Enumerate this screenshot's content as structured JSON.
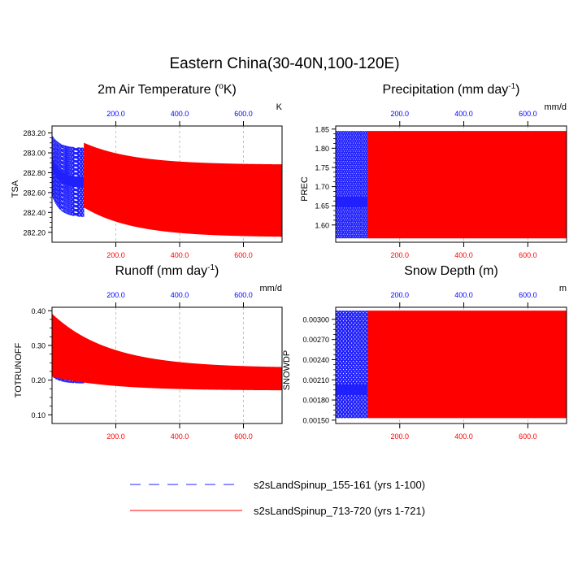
{
  "title": "Eastern China(30-40N,100-120E)",
  "colors": {
    "blue": "#2020ff",
    "red": "#ff0000",
    "blue_tick": "#0000ff",
    "red_tick": "#ff0000",
    "grid": "#9a9a9a"
  },
  "legend": [
    {
      "label": "s2sLandSpinup_155-161 (yrs 1-100)",
      "color": "#2020ff",
      "dash": "dashed"
    },
    {
      "label": "s2sLandSpinup_713-720 (yrs 1-721)",
      "color": "#ff0000",
      "dash": "solid"
    }
  ],
  "chart_data": [
    {
      "type": "line",
      "id": "tsa",
      "title_main": "2m Air Temperature (",
      "title_sup": "o",
      "title_end": "K)",
      "units": "K",
      "ylabel": "TSA",
      "xlim": [
        0,
        721
      ],
      "ylim": [
        282.1,
        283.27
      ],
      "yticks": [
        282.2,
        282.4,
        282.6,
        282.8,
        283.0,
        283.2
      ],
      "yticklabels": [
        "282.20",
        "282.40",
        "282.60",
        "282.80",
        "283.00",
        "283.20"
      ],
      "top_xticks": [
        200,
        400,
        600
      ],
      "top_xticklabels": [
        "200.0",
        "400.0",
        "600.0"
      ],
      "bottom_xticks": [
        200,
        400,
        600
      ],
      "bottom_xticklabels": [
        "200.0",
        "400.0",
        "600.0"
      ],
      "series": [
        {
          "name": "s2sLandSpinup_155-161 (yrs 1-100)",
          "color": "blue",
          "dash": "dashed",
          "x_range": [
            1,
            100
          ],
          "upper_start": 283.17,
          "upper_end": 283.05,
          "lower_start": 282.56,
          "lower_end": 282.35,
          "mean_start": 282.88,
          "mean_end": 282.7
        },
        {
          "name": "s2sLandSpinup_713-720 (yrs 1-721)",
          "color": "red",
          "dash": "solid",
          "x_range": [
            100,
            721
          ],
          "upper_start": 283.1,
          "upper_end": 282.88,
          "lower_start": 282.45,
          "lower_end": 282.15,
          "mean_start": 282.72,
          "mean_end": 282.6
        }
      ]
    },
    {
      "type": "line",
      "id": "prec",
      "title_main": "Precipitation (mm day",
      "title_sup": "-1",
      "title_end": ")",
      "units": "mm/d",
      "ylabel": "PREC",
      "xlim": [
        0,
        721
      ],
      "ylim": [
        1.555,
        1.858
      ],
      "yticks": [
        1.6,
        1.65,
        1.7,
        1.75,
        1.8,
        1.85
      ],
      "yticklabels": [
        "1.60",
        "1.65",
        "1.70",
        "1.75",
        "1.80",
        "1.85"
      ],
      "top_xticks": [
        200,
        400,
        600
      ],
      "top_xticklabels": [
        "200.0",
        "400.0",
        "600.0"
      ],
      "bottom_xticks": [
        200,
        400,
        600
      ],
      "bottom_xticklabels": [
        "200.0",
        "400.0",
        "600.0"
      ],
      "series": [
        {
          "name": "s2sLandSpinup_155-161 (yrs 1-100)",
          "color": "blue",
          "dash": "dashed",
          "x_range": [
            1,
            100
          ],
          "upper_start": 1.845,
          "upper_end": 1.845,
          "lower_start": 1.565,
          "lower_end": 1.565,
          "mean_start": 1.66,
          "mean_end": 1.66
        },
        {
          "name": "s2sLandSpinup_713-720 (yrs 1-721)",
          "color": "red",
          "dash": "solid",
          "x_range": [
            100,
            721
          ],
          "upper_start": 1.845,
          "upper_end": 1.845,
          "lower_start": 1.565,
          "lower_end": 1.565,
          "mean_start": 1.66,
          "mean_end": 1.66
        }
      ]
    },
    {
      "type": "line",
      "id": "runoff",
      "title_main": "Runoff (mm day",
      "title_sup": "-1",
      "title_end": ")",
      "units": "mm/d",
      "ylabel": "TOTRUNOFF",
      "xlim": [
        0,
        721
      ],
      "ylim": [
        0.075,
        0.41
      ],
      "yticks": [
        0.1,
        0.2,
        0.3,
        0.4
      ],
      "yticklabels": [
        "0.10",
        "0.20",
        "0.30",
        "0.40"
      ],
      "top_xticks": [
        200,
        400,
        600
      ],
      "top_xticklabels": [
        "200.0",
        "400.0",
        "600.0"
      ],
      "bottom_xticks": [
        200,
        400,
        600
      ],
      "bottom_xticklabels": [
        "200.0",
        "400.0",
        "600.0"
      ],
      "series": [
        {
          "name": "s2sLandSpinup_155-161 (yrs 1-100)",
          "color": "blue",
          "dash": "dashed",
          "x_range": [
            1,
            100
          ],
          "upper_start": 0.36,
          "upper_end": 0.28,
          "lower_start": 0.21,
          "lower_end": 0.19,
          "mean_start": 0.27,
          "mean_end": 0.23
        },
        {
          "name": "s2sLandSpinup_713-720 (yrs 1-721)",
          "color": "red",
          "dash": "solid",
          "x_range": [
            1,
            721
          ],
          "upper_start": 0.39,
          "upper_end": 0.235,
          "lower_start": 0.21,
          "lower_end": 0.17,
          "mean_start": 0.29,
          "mean_end": 0.195
        }
      ]
    },
    {
      "type": "line",
      "id": "snowdp",
      "title_main": "Snow Depth (m)",
      "title_sup": "",
      "title_end": "",
      "units": "m",
      "ylabel": "SNOWDP",
      "xlim": [
        0,
        721
      ],
      "ylim": [
        0.00145,
        0.00318
      ],
      "yticks": [
        0.0015,
        0.0018,
        0.0021,
        0.0024,
        0.0027,
        0.003
      ],
      "yticklabels": [
        "0.00150",
        "0.00180",
        "0.00210",
        "0.00240",
        "0.00270",
        "0.00300"
      ],
      "top_xticks": [
        200,
        400,
        600
      ],
      "top_xticklabels": [
        "200.0",
        "400.0",
        "600.0"
      ],
      "bottom_xticks": [
        200,
        400,
        600
      ],
      "bottom_xticklabels": [
        "200.0",
        "400.0",
        "600.0"
      ],
      "series": [
        {
          "name": "s2sLandSpinup_155-161 (yrs 1-100)",
          "color": "blue",
          "dash": "dashed",
          "x_range": [
            1,
            100
          ],
          "upper_start": 0.00313,
          "upper_end": 0.00313,
          "lower_start": 0.00153,
          "lower_end": 0.00153,
          "mean_start": 0.00195,
          "mean_end": 0.00195
        },
        {
          "name": "s2sLandSpinup_713-720 (yrs 1-721)",
          "color": "red",
          "dash": "solid",
          "x_range": [
            100,
            721
          ],
          "upper_start": 0.00313,
          "upper_end": 0.00313,
          "lower_start": 0.00153,
          "lower_end": 0.00153,
          "mean_start": 0.00195,
          "mean_end": 0.00195
        }
      ]
    }
  ]
}
